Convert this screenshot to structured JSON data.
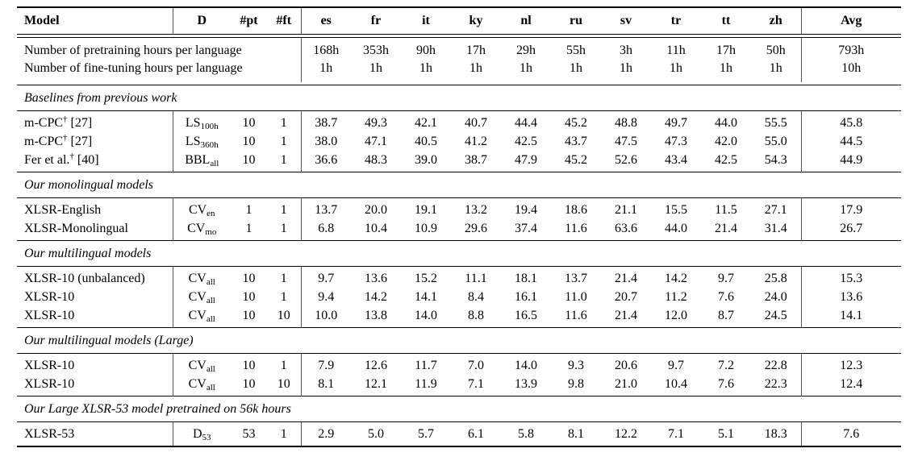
{
  "colors": {
    "background": "#ffffff",
    "text": "#000000",
    "rule": "#000000"
  },
  "header": {
    "model": "Model",
    "d": "D",
    "pt": "#pt",
    "ft": "#ft",
    "langs": [
      "es",
      "fr",
      "it",
      "ky",
      "nl",
      "ru",
      "sv",
      "tr",
      "tt",
      "zh"
    ],
    "avg": "Avg"
  },
  "hours": [
    {
      "label": "Number of pretraining hours per language",
      "v": [
        "168h",
        "353h",
        "90h",
        "17h",
        "29h",
        "55h",
        "3h",
        "11h",
        "17h",
        "50h"
      ],
      "avg": "793h"
    },
    {
      "label": "Number of fine-tuning hours per language",
      "v": [
        "1h",
        "1h",
        "1h",
        "1h",
        "1h",
        "1h",
        "1h",
        "1h",
        "1h",
        "1h"
      ],
      "avg": "10h"
    }
  ],
  "sections": [
    {
      "title": "Baselines from previous work",
      "rows": [
        {
          "m": "m-CPC",
          "sup": "†",
          "ref": "[27]",
          "db": "LS",
          "ds": "100h",
          "pt": "10",
          "ft": "1",
          "v": [
            "38.7",
            "49.3",
            "42.1",
            "40.7",
            "44.4",
            "45.2",
            "48.8",
            "49.7",
            "44.0",
            "55.5"
          ],
          "avg": "45.8"
        },
        {
          "m": "m-CPC",
          "sup": "†",
          "ref": "[27]",
          "db": "LS",
          "ds": "360h",
          "pt": "10",
          "ft": "1",
          "v": [
            "38.0",
            "47.1",
            "40.5",
            "41.2",
            "42.5",
            "43.7",
            "47.5",
            "47.3",
            "42.0",
            "55.0"
          ],
          "avg": "44.5"
        },
        {
          "m": "Fer et al.",
          "sup": "†",
          "ref": "[40]",
          "db": "BBL",
          "ds": "all",
          "pt": "10",
          "ft": "1",
          "v": [
            "36.6",
            "48.3",
            "39.0",
            "38.7",
            "47.9",
            "45.2",
            "52.6",
            "43.4",
            "42.5",
            "54.3"
          ],
          "avg": "44.9"
        }
      ]
    },
    {
      "title": "Our monolingual models",
      "rows": [
        {
          "m": "XLSR-English",
          "sup": "",
          "ref": "",
          "db": "CV",
          "ds": "en",
          "pt": "1",
          "ft": "1",
          "v": [
            "13.7",
            "20.0",
            "19.1",
            "13.2",
            "19.4",
            "18.6",
            "21.1",
            "15.5",
            "11.5",
            "27.1"
          ],
          "avg": "17.9"
        },
        {
          "m": "XLSR-Monolingual",
          "sup": "",
          "ref": "",
          "db": "CV",
          "ds": "mo",
          "pt": "1",
          "ft": "1",
          "v": [
            "6.8",
            "10.4",
            "10.9",
            "29.6",
            "37.4",
            "11.6",
            "63.6",
            "44.0",
            "21.4",
            "31.4"
          ],
          "avg": "26.7"
        }
      ]
    },
    {
      "title": "Our multilingual models",
      "rows": [
        {
          "m": "XLSR-10 (unbalanced)",
          "sup": "",
          "ref": "",
          "db": "CV",
          "ds": "all",
          "pt": "10",
          "ft": "1",
          "v": [
            "9.7",
            "13.6",
            "15.2",
            "11.1",
            "18.1",
            "13.7",
            "21.4",
            "14.2",
            "9.7",
            "25.8"
          ],
          "avg": "15.3"
        },
        {
          "m": "XLSR-10",
          "sup": "",
          "ref": "",
          "db": "CV",
          "ds": "all",
          "pt": "10",
          "ft": "1",
          "v": [
            "9.4",
            "14.2",
            "14.1",
            "8.4",
            "16.1",
            "11.0",
            "20.7",
            "11.2",
            "7.6",
            "24.0"
          ],
          "avg": "13.6"
        },
        {
          "m": "XLSR-10",
          "sup": "",
          "ref": "",
          "db": "CV",
          "ds": "all",
          "pt": "10",
          "ft": "10",
          "v": [
            "10.0",
            "13.8",
            "14.0",
            "8.8",
            "16.5",
            "11.6",
            "21.4",
            "12.0",
            "8.7",
            "24.5"
          ],
          "avg": "14.1"
        }
      ]
    },
    {
      "title": "Our multilingual models (Large)",
      "rows": [
        {
          "m": "XLSR-10",
          "sup": "",
          "ref": "",
          "db": "CV",
          "ds": "all",
          "pt": "10",
          "ft": "1",
          "v": [
            "7.9",
            "12.6",
            "11.7",
            "7.0",
            "14.0",
            "9.3",
            "20.6",
            "9.7",
            "7.2",
            "22.8"
          ],
          "avg": "12.3"
        },
        {
          "m": "XLSR-10",
          "sup": "",
          "ref": "",
          "db": "CV",
          "ds": "all",
          "pt": "10",
          "ft": "10",
          "v": [
            "8.1",
            "12.1",
            "11.9",
            "7.1",
            "13.9",
            "9.8",
            "21.0",
            "10.4",
            "7.6",
            "22.3"
          ],
          "avg": "12.4"
        }
      ]
    },
    {
      "title": "Our Large XLSR-53 model pretrained on 56k hours",
      "rows": [
        {
          "m": "XLSR-53",
          "sup": "",
          "ref": "",
          "db": "D",
          "ds": "53",
          "pt": "53",
          "ft": "1",
          "v": [
            "2.9",
            "5.0",
            "5.7",
            "6.1",
            "5.8",
            "8.1",
            "12.2",
            "7.1",
            "5.1",
            "18.3"
          ],
          "avg": "7.6"
        }
      ]
    }
  ]
}
